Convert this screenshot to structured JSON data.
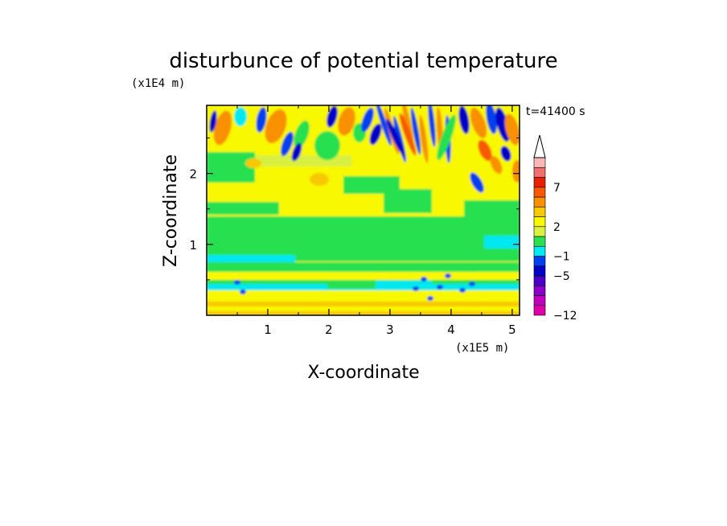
{
  "chart_data": {
    "type": "heatmap",
    "title": "disturbunce of potential temperature",
    "xlabel": "X-coordinate",
    "ylabel": "Z-coordinate",
    "x_unit": "(x1E5 m)",
    "y_unit": "(x1E4 m)",
    "time_label": "t=41400 s",
    "xlim": [
      0,
      5.12
    ],
    "ylim": [
      0,
      2.96
    ],
    "x_ticks": [
      "1",
      "2",
      "3",
      "4",
      "5"
    ],
    "y_ticks": [
      "1",
      "2"
    ],
    "colorbar": {
      "levels": [
        "−12",
        "−5",
        "−1",
        "2",
        "7"
      ],
      "level_values": [
        -12,
        -5,
        -1,
        2,
        7
      ],
      "colors": [
        "#e000a8",
        "#c000c0",
        "#8a00c8",
        "#4a00c8",
        "#0000c8",
        "#0040f0",
        "#00e8f0",
        "#28e050",
        "#d8f040",
        "#f8f800",
        "#f8c800",
        "#f89000",
        "#f85800",
        "#e82000",
        "#f07070",
        "#f8b8b8"
      ]
    },
    "field_colors": {
      "deep_blue": "#0000c8",
      "blue": "#0040f0",
      "cyan": "#00e8f0",
      "green": "#28e050",
      "lime": "#d8f040",
      "yellow": "#f8f800",
      "gold": "#f8c800",
      "orange": "#f89000",
      "red_orange": "#f85800"
    }
  }
}
